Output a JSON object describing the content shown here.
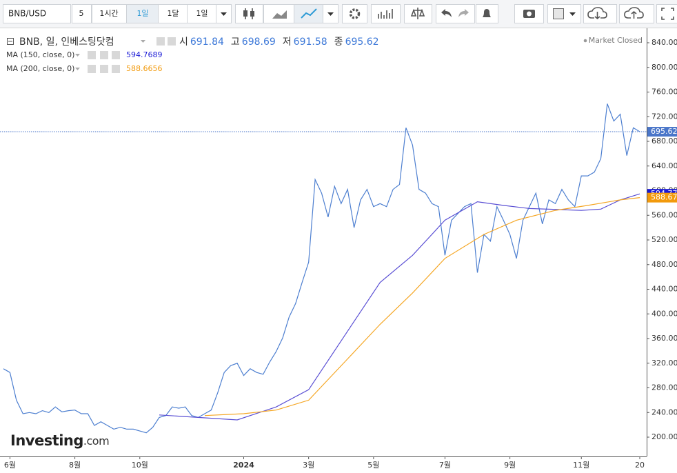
{
  "toolbar": {
    "symbol": "BNB/USD",
    "interval_value": "5",
    "buttons": [
      "1시간",
      "1일",
      "1달",
      "1일"
    ],
    "active": 1
  },
  "chart_data": {
    "type": "line",
    "title": "BNB, 일, 인베스팅닷컴",
    "ohlc": [
      {
        "label": "시",
        "value": 691.84
      },
      {
        "label": "고",
        "value": 698.69
      },
      {
        "label": "저",
        "value": 691.58
      },
      {
        "label": "종",
        "value": 695.62
      }
    ],
    "status": "Market Closed",
    "watermark": "Investing",
    "watermark_suffix": ".com",
    "xlim": [
      0,
      98
    ],
    "xticks": [
      {
        "value": 1,
        "label": "6월"
      },
      {
        "value": 11,
        "label": "8월"
      },
      {
        "value": 21,
        "label": "10월"
      },
      {
        "value": 37,
        "label": "2024"
      },
      {
        "value": 47,
        "label": "3월"
      },
      {
        "value": 57,
        "label": "5월"
      },
      {
        "value": 68,
        "label": "7월"
      },
      {
        "value": 78,
        "label": "9월"
      },
      {
        "value": 89,
        "label": "11월"
      },
      {
        "value": 98,
        "label": "20"
      }
    ],
    "ylim": [
      200,
      840
    ],
    "yticks": [
      {
        "value": 200,
        "label": "200.00"
      },
      {
        "value": 240,
        "label": "240.00"
      },
      {
        "value": 280,
        "label": "280.00"
      },
      {
        "value": 320,
        "label": "320.00"
      },
      {
        "value": 360,
        "label": "360.00"
      },
      {
        "value": 400,
        "label": "400.00"
      },
      {
        "value": 440,
        "label": "440.00"
      },
      {
        "value": 480,
        "label": "480.00"
      },
      {
        "value": 520,
        "label": "520.00"
      },
      {
        "value": 560,
        "label": "560.00"
      },
      {
        "value": 600,
        "label": "600.00"
      },
      {
        "value": 640,
        "label": "640.00"
      },
      {
        "value": 680,
        "label": "680.00"
      },
      {
        "value": 720,
        "label": "720.00"
      },
      {
        "value": 760,
        "label": "760.00"
      },
      {
        "value": 800,
        "label": "800.00"
      },
      {
        "value": 840,
        "label": "840.00"
      }
    ],
    "grid": false,
    "series": [
      {
        "name": "BNB",
        "color": "#4d7fd0",
        "tag_color": "#4a76c9",
        "last_label": "695.62",
        "values": [
          311,
          305,
          260,
          238,
          240,
          238,
          243,
          240,
          249,
          241,
          243,
          244,
          238,
          238,
          219,
          225,
          219,
          213,
          216,
          213,
          213,
          210,
          207,
          216,
          232,
          235,
          249,
          247,
          249,
          235,
          232,
          238,
          244,
          272,
          305,
          316,
          320,
          300,
          311,
          305,
          302,
          322,
          339,
          361,
          395,
          417,
          451,
          484,
          618,
          596,
          557,
          607,
          579,
          602,
          540,
          585,
          602,
          574,
          579,
          574,
          602,
          610,
          702,
          674,
          602,
          596,
          579,
          574,
          495,
          552,
          563,
          574,
          579,
          467,
          529,
          518,
          574,
          552,
          529,
          490,
          552,
          574,
          596,
          546,
          585,
          579,
          602,
          585,
          574,
          624,
          624,
          630,
          652,
          741,
          713,
          724,
          657,
          702,
          695.62
        ]
      },
      {
        "name": "MA (150, close, 0)",
        "color": "#5a4fd4",
        "tag_color": "#1a1ad6",
        "last_label": "594.77",
        "x": [
          24,
          36,
          42,
          47,
          53,
          58,
          63,
          68,
          73,
          77,
          81,
          89,
          92,
          95,
          98
        ],
        "values": [
          236,
          228,
          249,
          277,
          372,
          451,
          495,
          552,
          582,
          576,
          571,
          568,
          570,
          585,
          594.7689
        ]
      },
      {
        "name": "MA (200, close, 0)",
        "color": "#f5a623",
        "tag_color": "#f29a0c",
        "last_label": "588.67",
        "x": [
          31,
          37,
          42,
          47,
          53,
          58,
          63,
          68,
          74,
          79,
          85,
          90,
          95,
          98
        ],
        "values": [
          235,
          238,
          244,
          260,
          327,
          383,
          434,
          490,
          529,
          552,
          568,
          576,
          585,
          588.6656
        ]
      }
    ]
  }
}
